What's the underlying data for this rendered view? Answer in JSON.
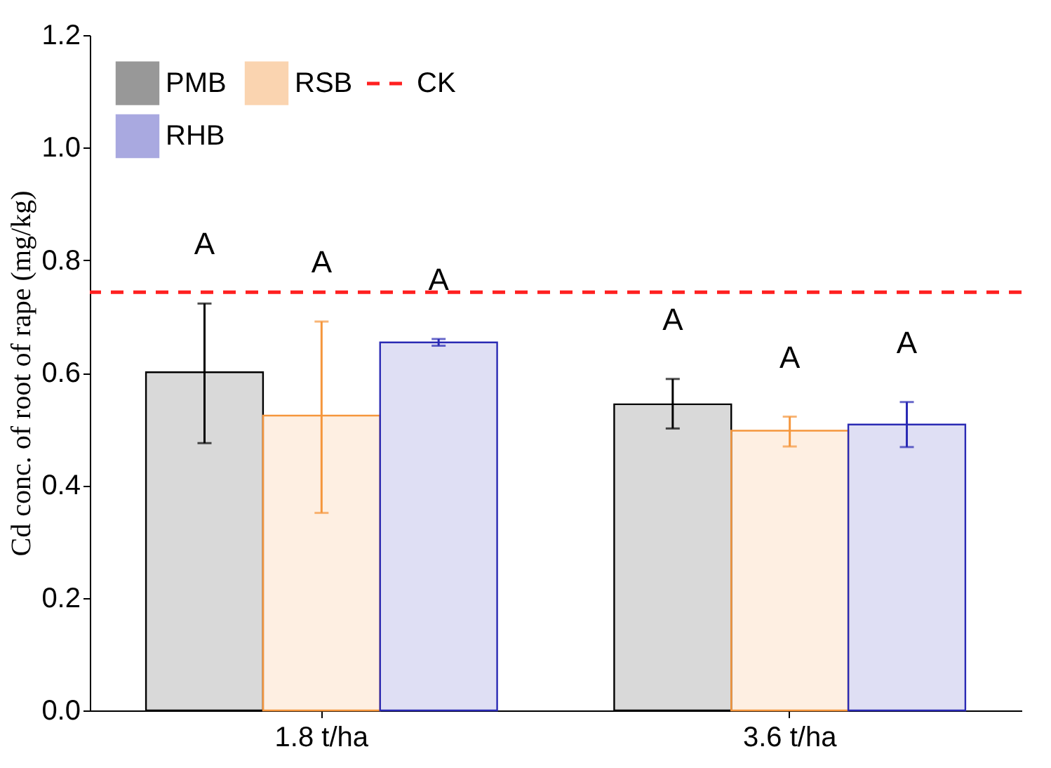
{
  "chart_data": {
    "type": "bar",
    "ylabel": "Cd conc. of root of rape (mg/kg)",
    "categories": [
      "1.8 t/ha",
      "3.6 t/ha"
    ],
    "series": [
      {
        "name": "PMB",
        "color": "#000000",
        "values": [
          0.601,
          0.544
        ],
        "errors": [
          [
            0.475,
            0.723
          ],
          [
            0.501,
            0.589
          ]
        ]
      },
      {
        "name": "RSB",
        "color": "#f5963c",
        "values": [
          0.524,
          0.497
        ],
        "errors": [
          [
            0.351,
            0.691
          ],
          [
            0.469,
            0.522
          ]
        ]
      },
      {
        "name": "RHB",
        "color": "#2a2ab4",
        "values": [
          0.654,
          0.508
        ],
        "errors": [
          [
            0.648,
            0.66
          ],
          [
            0.468,
            0.548
          ]
        ]
      }
    ],
    "ref_lines": [
      {
        "axis": "y",
        "value": 0.743,
        "label": "CK",
        "color": "#ff2020",
        "line_style": "dashed"
      }
    ],
    "annotations": [
      "A",
      "A",
      "A",
      "A",
      "A",
      "A"
    ],
    "ylim": [
      0,
      1.2
    ],
    "yticks": [
      {
        "value": 0,
        "label": "0.0"
      },
      {
        "value": 0.2,
        "label": "0.2"
      },
      {
        "value": 0.4,
        "label": "0.4"
      },
      {
        "value": 0.6,
        "label": "0.6"
      },
      {
        "value": 0.8,
        "label": "0.8"
      },
      {
        "value": 1.0,
        "label": "1.0"
      },
      {
        "value": 1.2,
        "label": "1.2"
      }
    ],
    "legend": "top left",
    "grid": false
  }
}
